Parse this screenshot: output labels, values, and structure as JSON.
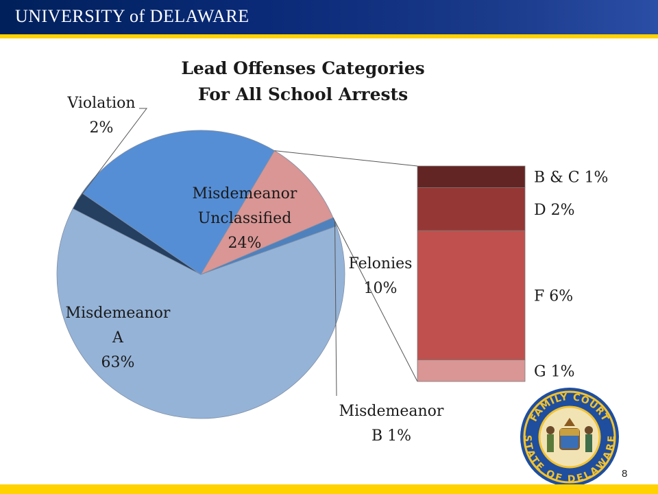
{
  "header": {
    "logo_text": "UNIVERSITY of DELAWARE",
    "colors": {
      "bar": "#00205b",
      "rule": "#ffd200"
    }
  },
  "page_number": "8",
  "seal": {
    "icon": "family-court-seal-icon",
    "top_text": "FAMILY COURT",
    "bottom_text": "STATE OF DELAWARE"
  },
  "chart_data": {
    "type": "pie",
    "title": "Lead Offenses Categories",
    "subtitle": "For All School Arrests",
    "pie": {
      "slices": [
        {
          "name": "Misdemeanor A",
          "value": 63,
          "label_lines": [
            "Misdemeanor",
            "A",
            "63%"
          ],
          "color": "#95b3d7"
        },
        {
          "name": "Violation",
          "value": 2,
          "label_lines": [
            "Violation",
            "2%"
          ],
          "color": "#243f60"
        },
        {
          "name": "Misdemeanor Unclassified",
          "value": 24,
          "label_lines": [
            "Misdemeanor",
            "Unclassified",
            "24%"
          ],
          "color": "#558ed5"
        },
        {
          "name": "Felonies",
          "value": 10,
          "label_lines": [
            "Felonies",
            "10%"
          ],
          "color": "#d99694"
        },
        {
          "name": "Misdemeanor B",
          "value": 1,
          "label_lines": [
            "Misdemeanor",
            "B    1%"
          ],
          "color": "#4f81bd"
        }
      ]
    },
    "breakdown": {
      "of": "Felonies",
      "type": "stacked-bar",
      "segments": [
        {
          "name": "B & C",
          "value": 1,
          "label": "B & C 1%",
          "color": "#632523"
        },
        {
          "name": "D",
          "value": 2,
          "label": "D  2%",
          "color": "#953735"
        },
        {
          "name": "F",
          "value": 6,
          "label": "F  6%",
          "color": "#c0504d"
        },
        {
          "name": "G",
          "value": 1,
          "label": "G  1%",
          "color": "#d99694"
        }
      ]
    }
  }
}
